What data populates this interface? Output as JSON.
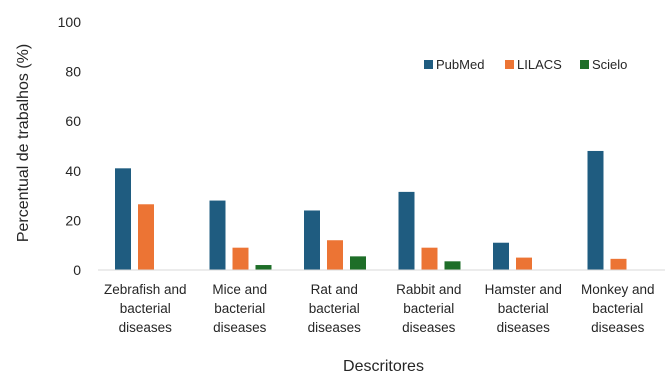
{
  "chart_data": {
    "type": "bar",
    "title": "",
    "xlabel": "Descritores",
    "ylabel": "Percentual de trabalhos (%)",
    "ylim": [
      0,
      100
    ],
    "yticks": [
      0,
      20,
      40,
      60,
      80,
      100
    ],
    "grid": false,
    "legend_position": "top-right",
    "categories": [
      [
        "Zebrafish and",
        "bacterial",
        "diseases"
      ],
      [
        "Mice and",
        "bacterial",
        "diseases"
      ],
      [
        "Rat and",
        "bacterial",
        "diseases"
      ],
      [
        "Rabbit and",
        "bacterial",
        "diseases"
      ],
      [
        "Hamster and",
        "bacterial",
        "diseases"
      ],
      [
        "Monkey and",
        "bacterial",
        "diseases"
      ]
    ],
    "series": [
      {
        "name": "PubMed",
        "color": "#1f5c80",
        "values": [
          41,
          28,
          24,
          31.5,
          11,
          48
        ]
      },
      {
        "name": "LILACS",
        "color": "#ec7434",
        "values": [
          26.5,
          9,
          12,
          9,
          5,
          4.5
        ]
      },
      {
        "name": "Scielo",
        "color": "#1e6e28",
        "values": [
          0,
          2,
          5.5,
          3.5,
          0,
          0
        ]
      }
    ]
  }
}
